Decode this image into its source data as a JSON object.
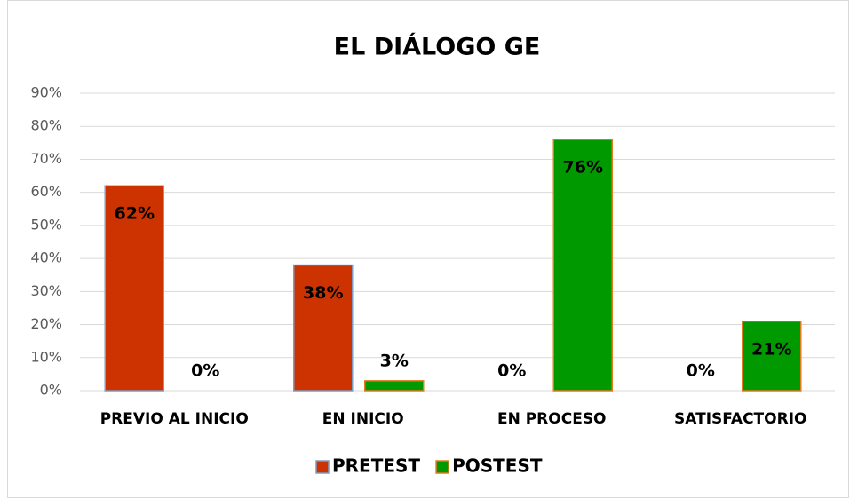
{
  "chart_data": {
    "type": "bar",
    "title": "EL DIÁLOGO GE",
    "categories": [
      "PREVIO AL INICIO",
      "EN INICIO",
      "EN PROCESO",
      "SATISFACTORIO"
    ],
    "series": [
      {
        "name": "PRETEST",
        "color": "#cc3300",
        "edgecolor": "#7f9cc0",
        "values": [
          62,
          38,
          0,
          0
        ],
        "value_labels": [
          "62%",
          "38%",
          "0%",
          "0%"
        ]
      },
      {
        "name": "POSTEST",
        "color": "#009900",
        "edgecolor": "#e07b20",
        "values": [
          0,
          3,
          76,
          21
        ],
        "value_labels": [
          "0%",
          "3%",
          "76%",
          "21%"
        ]
      }
    ],
    "ylim": [
      0,
      90
    ],
    "yticks": [
      {
        "value": 0,
        "label": "0%"
      },
      {
        "value": 10,
        "label": "10%"
      },
      {
        "value": 20,
        "label": "20%"
      },
      {
        "value": 30,
        "label": "30%"
      },
      {
        "value": 40,
        "label": "40%"
      },
      {
        "value": 50,
        "label": "50%"
      },
      {
        "value": 60,
        "label": "60%"
      },
      {
        "value": 70,
        "label": "70%"
      },
      {
        "value": 80,
        "label": "80%"
      },
      {
        "value": 90,
        "label": "90%"
      }
    ],
    "grid": true,
    "legend": "bottom"
  }
}
